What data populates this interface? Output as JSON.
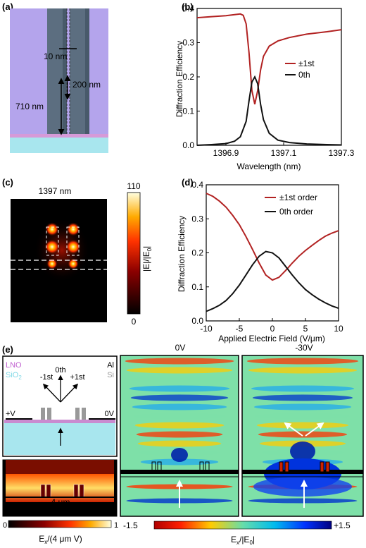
{
  "panels": {
    "a": {
      "label": "(a)",
      "dims": [
        "10 nm",
        "200 nm",
        "710 nm"
      ]
    },
    "b": {
      "label": "(b)",
      "ylabel": "Diffraction Efficiency",
      "xlabel": "Wavelength (nm)",
      "xticks": [
        "1396.9",
        "1397.1",
        "1397.3"
      ],
      "yticks": [
        "0.0",
        "0.1",
        "0.2",
        "0.3",
        "0.4"
      ],
      "legend": [
        "±1st",
        "0th"
      ]
    },
    "c": {
      "label": "(c)",
      "title": "1397 nm",
      "cbar_max": "110",
      "cbar_min": "0",
      "cbar_label": "|E|/|E",
      "cbar_label_sub": "0",
      "cbar_label_end": "|"
    },
    "d": {
      "label": "(d)",
      "ylabel": "Diffraction Efficiency",
      "xlabel": "Applied Electric Field (V/μm)",
      "xticks": [
        "-10",
        "-5",
        "0",
        "5",
        "10"
      ],
      "yticks": [
        "0.0",
        "0.1",
        "0.2",
        "0.3",
        "0.4"
      ],
      "legend": [
        "±1st order",
        "0th order"
      ]
    },
    "e": {
      "label": "(e)",
      "schematic": {
        "lno": "LNO",
        "sio2": "SiO",
        "sio2_sub": "2",
        "al": "Al",
        "si": "Si",
        "orders": [
          "-1st",
          "0th",
          "+1st"
        ],
        "plus_v": "+V",
        "zero_v": "0V"
      },
      "static_field": {
        "width_label": "4 μm",
        "cbar_min": "0",
        "cbar_max": "1",
        "cbar_label": "E",
        "cbar_label_sub": "x",
        "cbar_label_end": "/(4 μm V)"
      },
      "field_maps": {
        "left_title": "0V",
        "right_title": "-30V",
        "cbar_min": "-1.5",
        "cbar_max": "+1.5",
        "cbar_label": "E",
        "cbar_label_sub": "x",
        "cbar_label_mid": "/|E",
        "cbar_label_sub2": "0",
        "cbar_label_end": "|"
      }
    }
  },
  "colors": {
    "red_curve": "#b22222",
    "black_curve": "#111111",
    "lno": "#c98bd0",
    "sio2": "#a8e6ee"
  },
  "chart_data": [
    {
      "type": "line",
      "title": "",
      "xlabel": "Wavelength (nm)",
      "ylabel": "Diffraction Efficiency",
      "xlim": [
        1396.8,
        1397.3
      ],
      "ylim": [
        0.0,
        0.4
      ],
      "series": [
        {
          "name": "±1st",
          "x": [
            1396.8,
            1396.85,
            1396.9,
            1396.93,
            1396.95,
            1396.96,
            1396.97,
            1396.98,
            1396.99,
            1397.0,
            1397.01,
            1397.02,
            1397.03,
            1397.05,
            1397.08,
            1397.12,
            1397.18,
            1397.25,
            1397.3
          ],
          "y": [
            0.373,
            0.376,
            0.379,
            0.382,
            0.384,
            0.38,
            0.355,
            0.27,
            0.16,
            0.12,
            0.16,
            0.22,
            0.26,
            0.29,
            0.305,
            0.315,
            0.325,
            0.332,
            0.338
          ]
        },
        {
          "name": "0th",
          "x": [
            1396.8,
            1396.85,
            1396.9,
            1396.93,
            1396.95,
            1396.97,
            1396.98,
            1396.99,
            1397.0,
            1397.01,
            1397.02,
            1397.03,
            1397.05,
            1397.08,
            1397.12,
            1397.18,
            1397.25,
            1397.3
          ],
          "y": [
            0.0,
            0.002,
            0.005,
            0.012,
            0.025,
            0.07,
            0.13,
            0.185,
            0.2,
            0.18,
            0.12,
            0.075,
            0.035,
            0.015,
            0.008,
            0.004,
            0.002,
            0.001
          ]
        }
      ]
    },
    {
      "type": "line",
      "title": "",
      "xlabel": "Applied Electric Field (V/μm)",
      "ylabel": "Diffraction Efficiency",
      "xlim": [
        -10,
        10
      ],
      "ylim": [
        0.0,
        0.4
      ],
      "series": [
        {
          "name": "±1st order",
          "x": [
            -10,
            -9,
            -8,
            -7,
            -6,
            -5,
            -4,
            -3,
            -2,
            -1,
            0,
            1,
            2,
            3,
            4,
            5,
            6,
            7,
            8,
            9,
            10
          ],
          "y": [
            0.375,
            0.366,
            0.352,
            0.334,
            0.31,
            0.283,
            0.248,
            0.21,
            0.17,
            0.135,
            0.12,
            0.128,
            0.148,
            0.17,
            0.19,
            0.207,
            0.222,
            0.236,
            0.249,
            0.258,
            0.265
          ]
        },
        {
          "name": "0th order",
          "x": [
            -10,
            -9,
            -8,
            -7,
            -6,
            -5,
            -4,
            -3,
            -2,
            -1,
            0,
            1,
            2,
            3,
            4,
            5,
            6,
            7,
            8,
            9,
            10
          ],
          "y": [
            0.028,
            0.036,
            0.046,
            0.06,
            0.08,
            0.105,
            0.135,
            0.165,
            0.19,
            0.204,
            0.2,
            0.185,
            0.16,
            0.135,
            0.112,
            0.092,
            0.077,
            0.064,
            0.053,
            0.044,
            0.037
          ]
        }
      ]
    }
  ]
}
